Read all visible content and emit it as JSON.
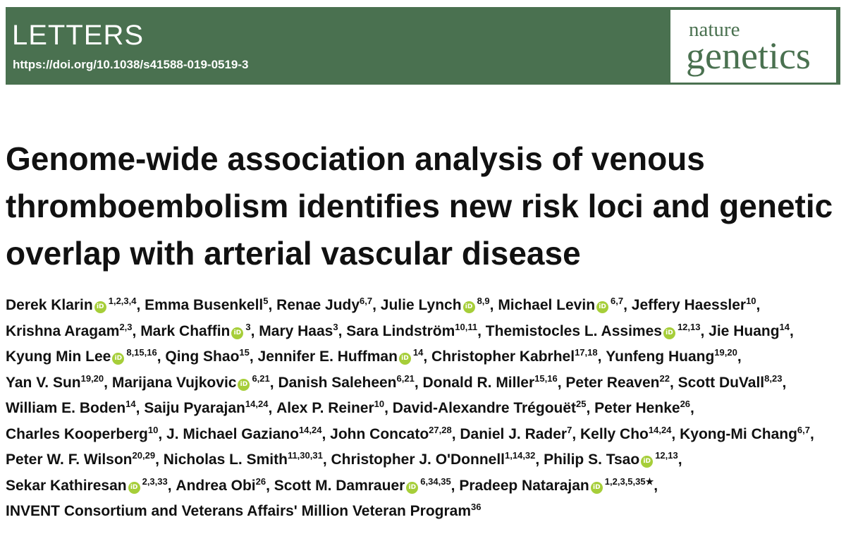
{
  "header": {
    "section_label": "LETTERS",
    "doi": "https://doi.org/10.1038/s41588-019-0519-3",
    "journal_line1": "nature",
    "journal_line2": "genetics",
    "colors": {
      "banner": "#4a7150",
      "orcid": "#a6ce39"
    }
  },
  "article": {
    "title": "Genome-wide association analysis of venous thromboembolism identifies new risk loci and genetic overlap with arterial vascular disease",
    "orcid_icon_text": "iD",
    "separator": ", ",
    "authors": [
      {
        "name": "Derek Klarin",
        "orcid": true,
        "affil": "1,2,3,4"
      },
      {
        "name": "Emma Busenkell",
        "orcid": false,
        "affil": "5"
      },
      {
        "name": "Renae Judy",
        "orcid": false,
        "affil": "6,7"
      },
      {
        "name": "Julie Lynch",
        "orcid": true,
        "affil": "8,9"
      },
      {
        "name": "Michael Levin",
        "orcid": true,
        "affil": "6,7"
      },
      {
        "name": "Jeffery Haessler",
        "orcid": false,
        "affil": "10"
      },
      {
        "name": "Krishna Aragam",
        "orcid": false,
        "affil": "2,3"
      },
      {
        "name": "Mark Chaffin",
        "orcid": true,
        "affil": "3"
      },
      {
        "name": "Mary Haas",
        "orcid": false,
        "affil": "3"
      },
      {
        "name": "Sara Lindström",
        "orcid": false,
        "affil": "10,11"
      },
      {
        "name": "Themistocles L. Assimes",
        "orcid": true,
        "affil": "12,13"
      },
      {
        "name": "Jie Huang",
        "orcid": false,
        "affil": "14"
      },
      {
        "name": "Kyung Min Lee",
        "orcid": true,
        "affil": "8,15,16"
      },
      {
        "name": "Qing Shao",
        "orcid": false,
        "affil": "15"
      },
      {
        "name": "Jennifer E. Huffman",
        "orcid": true,
        "affil": "14"
      },
      {
        "name": "Christopher Kabrhel",
        "orcid": false,
        "affil": "17,18"
      },
      {
        "name": "Yunfeng Huang",
        "orcid": false,
        "affil": "19,20"
      },
      {
        "name": "Yan V. Sun",
        "orcid": false,
        "affil": "19,20"
      },
      {
        "name": "Marijana Vujkovic",
        "orcid": true,
        "affil": "6,21"
      },
      {
        "name": "Danish Saleheen",
        "orcid": false,
        "affil": "6,21"
      },
      {
        "name": "Donald R. Miller",
        "orcid": false,
        "affil": "15,16"
      },
      {
        "name": "Peter Reaven",
        "orcid": false,
        "affil": "22"
      },
      {
        "name": "Scott DuVall",
        "orcid": false,
        "affil": "8,23"
      },
      {
        "name": "William E. Boden",
        "orcid": false,
        "affil": "14"
      },
      {
        "name": "Saiju Pyarajan",
        "orcid": false,
        "affil": "14,24"
      },
      {
        "name": "Alex P. Reiner",
        "orcid": false,
        "affil": "10"
      },
      {
        "name": "David-Alexandre Trégouët",
        "orcid": false,
        "affil": "25"
      },
      {
        "name": "Peter Henke",
        "orcid": false,
        "affil": "26"
      },
      {
        "name": "Charles Kooperberg",
        "orcid": false,
        "affil": "10"
      },
      {
        "name": "J. Michael Gaziano",
        "orcid": false,
        "affil": "14,24"
      },
      {
        "name": "John Concato",
        "orcid": false,
        "affil": "27,28"
      },
      {
        "name": "Daniel J. Rader",
        "orcid": false,
        "affil": "7"
      },
      {
        "name": "Kelly Cho",
        "orcid": false,
        "affil": "14,24"
      },
      {
        "name": "Kyong-Mi Chang",
        "orcid": false,
        "affil": "6,7"
      },
      {
        "name": "Peter W. F. Wilson",
        "orcid": false,
        "affil": "20,29"
      },
      {
        "name": "Nicholas L. Smith",
        "orcid": false,
        "affil": "11,30,31"
      },
      {
        "name": "Christopher J. O'Donnell",
        "orcid": false,
        "affil": "1,14,32"
      },
      {
        "name": "Philip S. Tsao",
        "orcid": true,
        "affil": "12,13"
      },
      {
        "name": "Sekar Kathiresan",
        "orcid": true,
        "affil": "2,3,33"
      },
      {
        "name": "Andrea Obi",
        "orcid": false,
        "affil": "26"
      },
      {
        "name": "Scott M. Damrauer",
        "orcid": true,
        "affil": "6,34,35"
      },
      {
        "name": "Pradeep Natarajan",
        "orcid": true,
        "affil": "1,2,3,5,35★"
      },
      {
        "name": "INVENT Consortium and Veterans Affairs' Million Veteran Program",
        "orcid": false,
        "affil": "36"
      }
    ]
  }
}
